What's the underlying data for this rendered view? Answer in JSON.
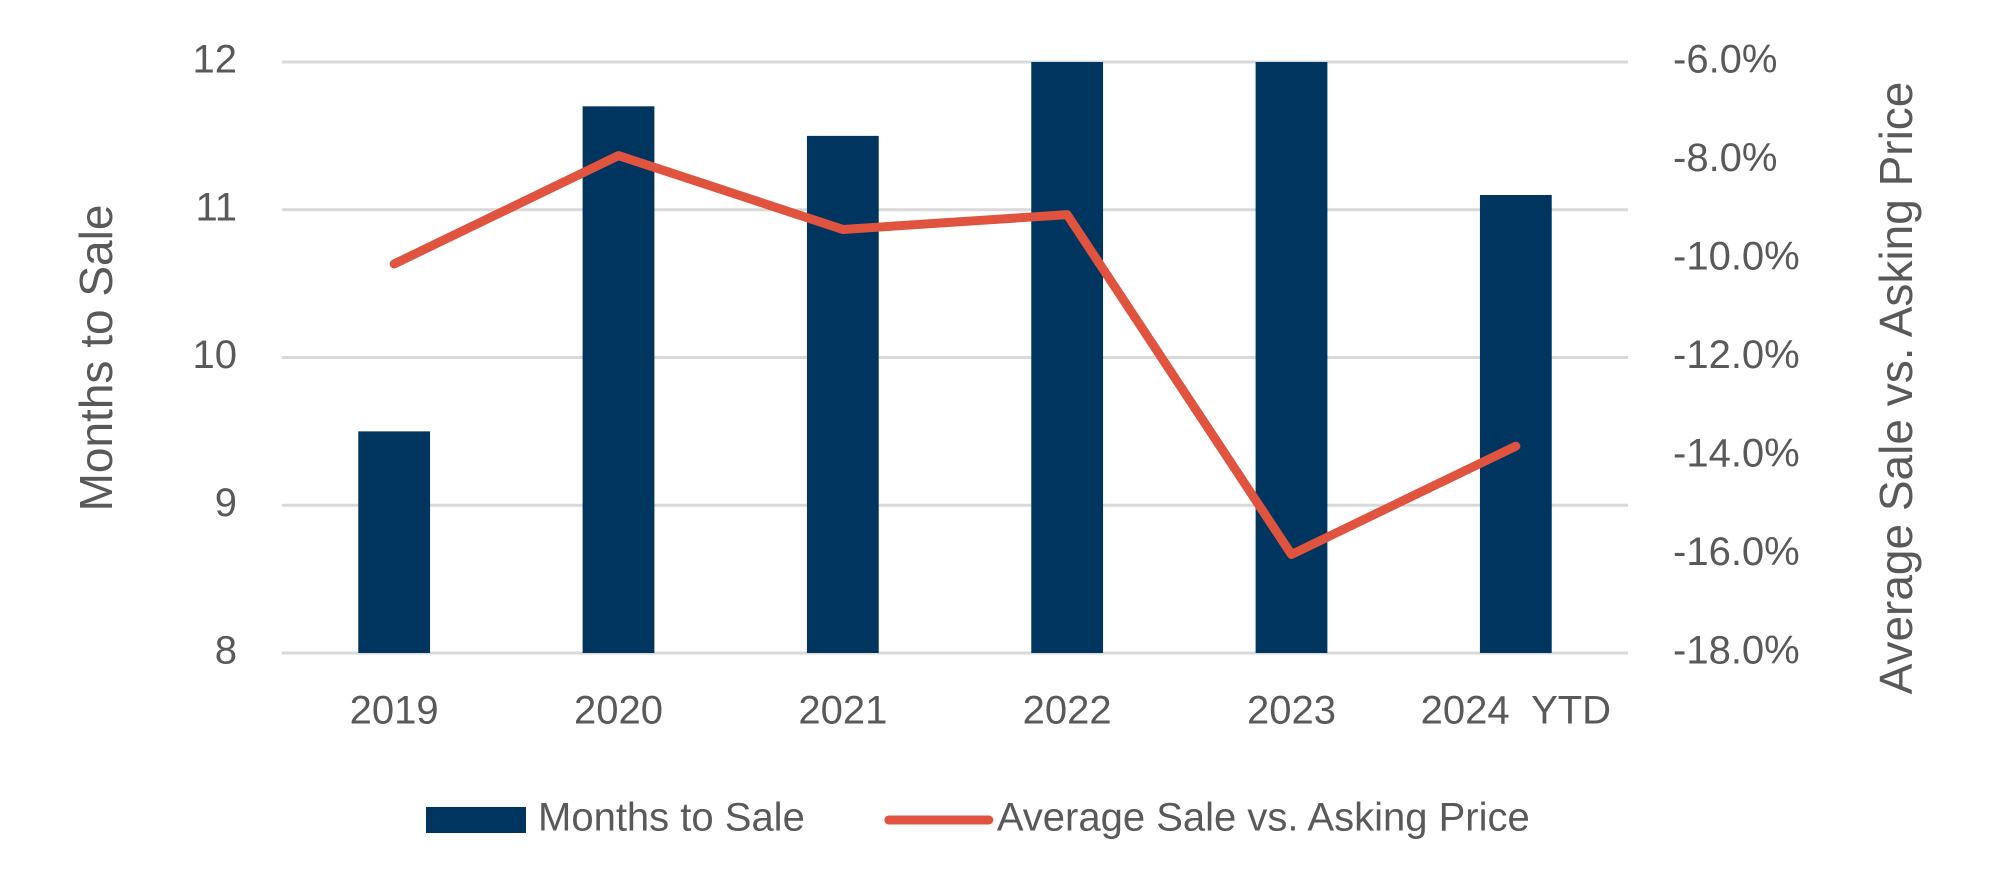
{
  "chart_data": {
    "type": "bar-line",
    "categories": [
      "2019",
      "2020",
      "2021",
      "2022",
      "2023",
      "2024  YTD"
    ],
    "y_label": "Months to Sale",
    "y2_label": "Average Sale vs. Asking Price",
    "ylim": [
      8,
      12
    ],
    "yticks": [
      8,
      9,
      10,
      11,
      12
    ],
    "y2lim": [
      -18,
      -6
    ],
    "y2ticks": [
      {
        "value": -18,
        "label": "-18.0%"
      },
      {
        "value": -16,
        "label": "-16.0%"
      },
      {
        "value": -14,
        "label": "-14.0%"
      },
      {
        "value": -12,
        "label": "-12.0%"
      },
      {
        "value": -10,
        "label": "-10.0%"
      },
      {
        "value": -8,
        "label": "-8.0%"
      },
      {
        "value": -6,
        "label": "-6.0%"
      }
    ],
    "grid": true,
    "legend": "bottom",
    "series": [
      {
        "name": "Months to Sale",
        "type": "bar",
        "color": "#003560",
        "values": [
          9.5,
          11.7,
          11.5,
          12.0,
          12.0,
          11.1
        ]
      },
      {
        "name": "Average Sale vs. Asking Price",
        "type": "line",
        "axis": "y2",
        "color": "#e0533f",
        "values": [
          -10.1,
          -7.9,
          -9.4,
          -9.1,
          -16.0,
          -13.8
        ]
      }
    ]
  }
}
